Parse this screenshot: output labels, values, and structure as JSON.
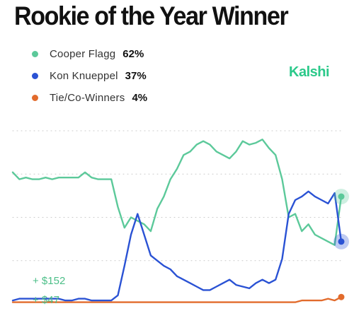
{
  "header": {
    "title": "Rookie of the Year Winner",
    "brand": "Kalshi"
  },
  "legend": [
    {
      "name": "Cooper Flagg",
      "pct": "62%",
      "color": "#5cc99a"
    },
    {
      "name": "Kon Knueppel",
      "pct": "37%",
      "color": "#2a52d4"
    },
    {
      "name": "Tie/Co-Winners",
      "pct": "4%",
      "color": "#e26b2c"
    }
  ],
  "chart_data": {
    "type": "line",
    "title": "Rookie of the Year Winner",
    "ylim": [
      0,
      100
    ],
    "grid": true,
    "legend_position": "top-left",
    "annotations": [
      "+ $152",
      "+ $47"
    ],
    "x": [
      0,
      2,
      4,
      6,
      8,
      10,
      12,
      14,
      16,
      18,
      20,
      22,
      24,
      26,
      28,
      30,
      32,
      34,
      36,
      38,
      40,
      42,
      44,
      46,
      48,
      50,
      52,
      54,
      56,
      58,
      60,
      62,
      64,
      66,
      68,
      70,
      72,
      74,
      76,
      78,
      80,
      82,
      84,
      86,
      88,
      90,
      92,
      94,
      96,
      98,
      100
    ],
    "series": [
      {
        "name": "Cooper Flagg",
        "color": "#5cc99a",
        "values": [
          76,
          72,
          73,
          72,
          72,
          73,
          72,
          73,
          73,
          73,
          73,
          76,
          73,
          72,
          72,
          72,
          56,
          44,
          50,
          48,
          46,
          42,
          55,
          62,
          72,
          78,
          86,
          88,
          92,
          94,
          92,
          88,
          86,
          84,
          88,
          94,
          92,
          93,
          95,
          90,
          86,
          72,
          50,
          52,
          42,
          46,
          40,
          38,
          36,
          34,
          62
        ]
      },
      {
        "name": "Kon Knueppel",
        "color": "#2a52d4",
        "values": [
          2,
          3,
          3,
          3,
          3,
          3,
          3,
          3,
          2,
          2,
          3,
          3,
          2,
          2,
          2,
          2,
          5,
          22,
          40,
          52,
          40,
          28,
          25,
          22,
          20,
          16,
          14,
          12,
          10,
          8,
          8,
          10,
          12,
          14,
          11,
          10,
          9,
          12,
          14,
          12,
          14,
          26,
          52,
          60,
          62,
          65,
          62,
          60,
          58,
          64,
          36
        ]
      },
      {
        "name": "Tie/Co-Winners",
        "color": "#e26b2c",
        "values": [
          1,
          1,
          1,
          1,
          1,
          1,
          1,
          1,
          1,
          1,
          1,
          1,
          1,
          1,
          1,
          1,
          1,
          1,
          1,
          1,
          1,
          1,
          1,
          1,
          1,
          1,
          1,
          1,
          1,
          1,
          1,
          1,
          1,
          1,
          1,
          1,
          1,
          1,
          1,
          1,
          1,
          1,
          1,
          1,
          2,
          2,
          2,
          2,
          3,
          2,
          4
        ]
      }
    ]
  }
}
